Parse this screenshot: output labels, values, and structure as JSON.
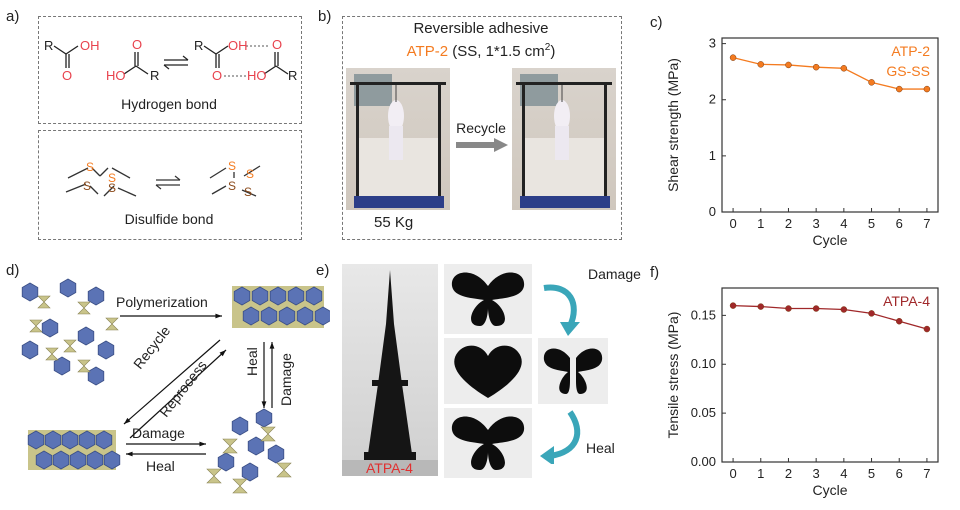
{
  "panels": {
    "a": {
      "label": "a)",
      "hydrogen": {
        "caption": "Hydrogen bond",
        "R": "R",
        "OH": "OH",
        "O": "O",
        "HO": "HO"
      },
      "disulfide": {
        "caption": "Disulfide bond",
        "S": "S"
      }
    },
    "b": {
      "label": "b)",
      "title": "Reversible adhesive",
      "material": "ATP-2",
      "material_detail_pre": " (SS, 1*1.5 cm",
      "material_detail_sup": "2",
      "material_detail_post": ")",
      "arrow_label": "Recycle",
      "weight": "55 Kg"
    },
    "c": {
      "label": "c)"
    },
    "d": {
      "label": "d)",
      "polymerization": "Polymerization",
      "recycle": "Recycle",
      "reprocess": "Reprocess",
      "heal_right": "Heal",
      "damage_right": "Damage",
      "damage_bottom": "Damage",
      "heal_bottom": "Heal"
    },
    "e": {
      "label": "e)",
      "tower_label": "ATPA-4",
      "damage": "Damage",
      "heal": "Heal"
    },
    "f": {
      "label": "f)"
    }
  },
  "colors": {
    "orange": "#f47b20",
    "darkred": "#a0282a",
    "red_text": "#e8434e",
    "hex_blue": "#5b73b5",
    "crosslinker": "#c9c48a"
  },
  "chart_data": [
    {
      "type": "line",
      "x": [
        0,
        1,
        2,
        3,
        4,
        5,
        6,
        7
      ],
      "series": [
        {
          "values": [
            2.75,
            2.63,
            2.62,
            2.58,
            2.56,
            2.31,
            2.19,
            2.19
          ]
        }
      ],
      "legend": [
        "ATP-2",
        "GS-SS"
      ],
      "xlabel": "Cycle",
      "ylabel": "Shear strength (MPa)",
      "xticks": [
        "0",
        "1",
        "2",
        "3",
        "4",
        "5",
        "6",
        "7"
      ],
      "yticks": [
        "0",
        "1",
        "2",
        "3"
      ],
      "xlim": [
        -0.4,
        7.4
      ],
      "ylim": [
        0,
        3.1
      ],
      "color": "#f47b20"
    },
    {
      "type": "line",
      "x": [
        0,
        1,
        2,
        3,
        4,
        5,
        6,
        7
      ],
      "series": [
        {
          "values": [
            0.16,
            0.159,
            0.157,
            0.157,
            0.156,
            0.152,
            0.144,
            0.136
          ]
        }
      ],
      "legend": [
        "ATPA-4"
      ],
      "xlabel": "Cycle",
      "ylabel": "Tensile stress (MPa)",
      "xticks": [
        "0",
        "1",
        "2",
        "3",
        "4",
        "5",
        "6",
        "7"
      ],
      "yticks": [
        "0.00",
        "0.05",
        "0.10",
        "0.15"
      ],
      "xlim": [
        -0.4,
        7.4
      ],
      "ylim": [
        0,
        0.178
      ],
      "color": "#a0282a"
    }
  ]
}
